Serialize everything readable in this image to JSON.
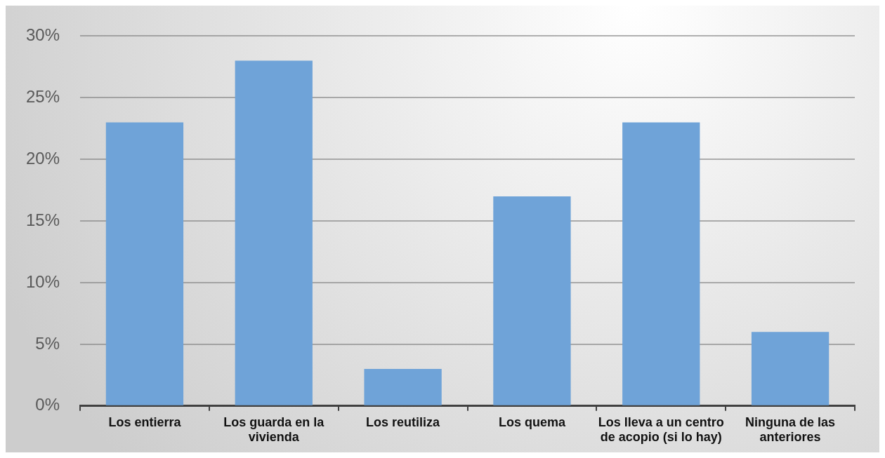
{
  "chart_data": {
    "type": "bar",
    "categories": [
      "Los entierra",
      "Los guarda en la vivienda",
      "Los reutiliza",
      "Los quema",
      "Los lleva a un centro de acopio (si lo hay)",
      "Ninguna de las anteriores"
    ],
    "values": [
      23,
      28,
      3,
      17,
      23,
      6
    ],
    "color": "#6fa3d8",
    "ylim": [
      0,
      30
    ],
    "yticks": [
      {
        "value": 0,
        "label": "0%"
      },
      {
        "value": 5,
        "label": "5%"
      },
      {
        "value": 10,
        "label": "10%"
      },
      {
        "value": 15,
        "label": "15%"
      },
      {
        "value": 20,
        "label": "20%"
      },
      {
        "value": 25,
        "label": "25%"
      },
      {
        "value": 30,
        "label": "30%"
      }
    ],
    "grid": "y"
  }
}
